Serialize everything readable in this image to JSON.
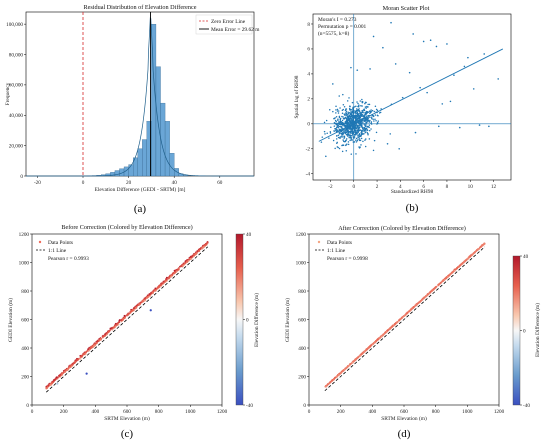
{
  "chart_data": [
    {
      "id": "a",
      "type": "histogram",
      "title": "Residual Distribution of Elevation Difference",
      "xlabel": "Elevation Difference (GEDI - SRTM) [m]",
      "ylabel": "Frequency",
      "xlim": [
        -25,
        75
      ],
      "ylim": [
        0,
        108000
      ],
      "xticks": [
        -20,
        0,
        20,
        40,
        60
      ],
      "yticks": [
        0,
        20000,
        40000,
        60000,
        80000,
        100000
      ],
      "ytick_labels": [
        "0",
        "20,000",
        "40,000",
        "60,000",
        "80,000",
        "100,000"
      ],
      "bins": {
        "x": [
          3,
          5,
          7,
          9,
          11,
          13,
          15,
          17,
          19,
          21,
          23,
          25,
          27,
          29,
          31,
          33,
          35,
          37,
          39,
          41,
          43,
          45
        ],
        "counts": [
          150,
          300,
          500,
          900,
          1500,
          2400,
          3600,
          4800,
          6000,
          7500,
          12000,
          18000,
          24000,
          36000,
          100000,
          72000,
          48000,
          36000,
          15000,
          5000,
          1500,
          500
        ]
      },
      "kde_peak": 108000,
      "vlines": [
        {
          "name": "Zero Error Line",
          "x": 0,
          "color": "#d62728",
          "style": "dashed"
        },
        {
          "name": "Mean Error = 29.62 m",
          "x": 29.62,
          "color": "#000000",
          "style": "solid"
        }
      ],
      "legend_loc": "upper-right",
      "caption": "(a)"
    },
    {
      "id": "b",
      "type": "scatter",
      "title": "Moran Scatter Plot",
      "xlabel": "Standardized RH98",
      "ylabel": "Spatial lag of RH98",
      "xlim": [
        -3.5,
        13.5
      ],
      "ylim": [
        -4.5,
        8.8
      ],
      "xticks": [
        -2,
        0,
        2,
        4,
        6,
        8,
        10,
        12
      ],
      "yticks": [
        -4,
        -2,
        0,
        2,
        4,
        6,
        8
      ],
      "annotation": [
        "Moran's I = 0.273",
        "Permutation p = 0.001",
        "(n=5575, k=8)"
      ],
      "morans_i": 0.273,
      "p_value": 0.001,
      "n": 5575,
      "k": 8,
      "color": "#1f77b4",
      "outliers": [
        {
          "x": 3.2,
          "y": 8.1
        },
        {
          "x": 5.1,
          "y": 7.2
        },
        {
          "x": 6.0,
          "y": 6.6
        },
        {
          "x": 6.6,
          "y": 6.7
        },
        {
          "x": 7.1,
          "y": 6.2
        },
        {
          "x": 8.0,
          "y": 6.4
        },
        {
          "x": 11.2,
          "y": 5.6
        },
        {
          "x": 12.4,
          "y": 3.6
        },
        {
          "x": 9.8,
          "y": 5.3
        },
        {
          "x": 3.6,
          "y": 4.8
        },
        {
          "x": 4.2,
          "y": 2.1
        },
        {
          "x": 5.7,
          "y": 2.9
        },
        {
          "x": 8.6,
          "y": 3.9
        },
        {
          "x": 9.5,
          "y": 4.6
        },
        {
          "x": 10.3,
          "y": 2.8
        },
        {
          "x": 7.6,
          "y": 1.6
        },
        {
          "x": 2.5,
          "y": 6.1
        },
        {
          "x": 1.7,
          "y": 7.0
        },
        {
          "x": 4.8,
          "y": 4.1
        },
        {
          "x": 6.3,
          "y": 2.5
        },
        {
          "x": 10.8,
          "y": -0.1
        },
        {
          "x": 11.6,
          "y": -0.2
        },
        {
          "x": 9.1,
          "y": -0.3
        },
        {
          "x": 7.3,
          "y": -0.2
        },
        {
          "x": 3.9,
          "y": -2.0
        },
        {
          "x": 2.9,
          "y": -1.6
        },
        {
          "x": -1.8,
          "y": 3.2
        },
        {
          "x": -2.4,
          "y": -2.6
        },
        {
          "x": 1.4,
          "y": 4.4
        },
        {
          "x": 0.3,
          "y": 4.3
        },
        {
          "x": 8.3,
          "y": 1.8
        },
        {
          "x": 5.3,
          "y": -0.7
        }
      ],
      "regression": {
        "slope": 0.273,
        "intercept": 0.0
      },
      "cloud": {
        "x_mean": 0.0,
        "x_sd": 0.8,
        "y_mean": 0.0,
        "y_sd": 0.7,
        "count": 900
      },
      "caption": "(b)"
    },
    {
      "id": "c",
      "type": "scatter",
      "title": "Before Correction (Colored by Elevation Difference)",
      "xlabel": "SRTM Elevation (m)",
      "ylabel": "GEDI Elevation (m)",
      "xlim": [
        0,
        1200
      ],
      "ylim": [
        0,
        1200
      ],
      "xticks": [
        0,
        200,
        400,
        600,
        800,
        1000,
        1200
      ],
      "yticks": [
        0,
        200,
        400,
        600,
        800,
        1000,
        1200
      ],
      "legend": [
        "Data Points",
        "1:1 Line",
        "Pearson r = 0.9993"
      ],
      "pearson_r": 0.9993,
      "x_range": [
        90,
        1110
      ],
      "offset": 29.62,
      "outliers": [
        {
          "x": 345,
          "y": 220,
          "diff": -40
        },
        {
          "x": 750,
          "y": 665,
          "diff": -40
        },
        {
          "x": 160,
          "y": 150,
          "diff": -10
        }
      ],
      "colorbar": {
        "label": "Elevation Difference (m)",
        "min": -40,
        "max": 40,
        "ticks": [
          40,
          0,
          -40
        ]
      },
      "caption": "(c)"
    },
    {
      "id": "d",
      "type": "scatter",
      "title": "After Correction (Colored by Elevation Difference)",
      "xlabel": "SRTM Elevation (m)",
      "ylabel": "GEDI Elevation (m)",
      "xlim": [
        0,
        1200
      ],
      "ylim": [
        0,
        1200
      ],
      "xticks": [
        0,
        200,
        400,
        600,
        800,
        1000,
        1200
      ],
      "yticks": [
        0,
        200,
        400,
        600,
        800,
        1000,
        1200
      ],
      "legend": [
        "Data Points",
        "1:1 Line",
        "Pearson r = 0.9998"
      ],
      "pearson_r": 0.9998,
      "x_range": [
        100,
        1110
      ],
      "offset": 25,
      "colorbar": {
        "label": "Elevation Difference (m)",
        "min": -40,
        "max": 40,
        "ticks": [
          40,
          0,
          -40
        ]
      },
      "caption": "(d)"
    }
  ]
}
